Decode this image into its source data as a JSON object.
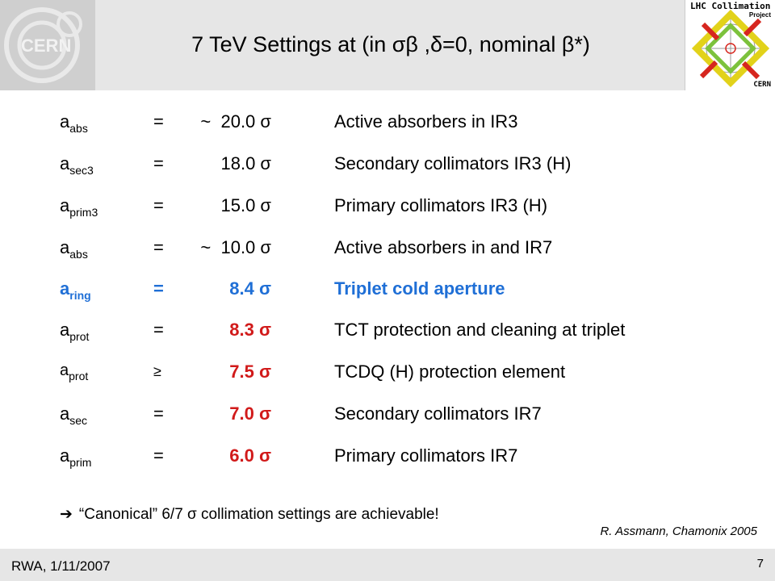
{
  "header": {
    "title": "7 TeV Settings at (in σβ ,δ=0, nominal β*)",
    "logo_left_text": "CERN",
    "logo_right": {
      "line1": "LHC Collimation",
      "line2": "Project",
      "line3": "CERN"
    }
  },
  "rows": [
    {
      "symbol": "a",
      "subscript": "abs",
      "op": "=",
      "value": "~  20.0 σ",
      "desc": "Active absorbers in IR3"
    },
    {
      "symbol": "a",
      "subscript": "sec3",
      "op": "=",
      "value": "18.0 σ",
      "desc": "Secondary collimators IR3 (H)"
    },
    {
      "symbol": "a",
      "subscript": "prim3",
      "op": "=",
      "value": "15.0 σ",
      "desc": "Primary collimators IR3 (H)"
    },
    {
      "symbol": "a",
      "subscript": "abs",
      "op": "=",
      "value": "~  10.0 σ",
      "desc": "Active absorbers in and IR7"
    },
    {
      "symbol": "a",
      "subscript": "ring",
      "op": "=",
      "value": "8.4 σ",
      "desc": "Triplet cold aperture"
    },
    {
      "symbol": "a",
      "subscript": "prot",
      "op": "=",
      "value": "8.3 σ",
      "desc": "TCT protection and cleaning at triplet"
    },
    {
      "symbol": "a",
      "subscript": "prot",
      "op": "≥",
      "value": "7.5 σ",
      "desc": "TCDQ (H) protection element"
    },
    {
      "symbol": "a",
      "subscript": "sec",
      "op": "=",
      "value": "7.0 σ",
      "desc": "Secondary collimators IR7"
    },
    {
      "symbol": "a",
      "subscript": "prim",
      "op": "=",
      "value": "6.0 σ",
      "desc": "Primary collimators IR7"
    }
  ],
  "note": {
    "arrow": "➔",
    "text": "“Canonical”  6/7  σ  collimation  settings are achievable!"
  },
  "reference": "R. Assmann, Chamonix 2005",
  "footer": {
    "left": "RWA, 1/11/2007",
    "page": "7"
  },
  "colors": {
    "highlight_blue": "#1f6fd6",
    "highlight_red": "#d11a1a",
    "header_bg": "#e6e6e6"
  }
}
